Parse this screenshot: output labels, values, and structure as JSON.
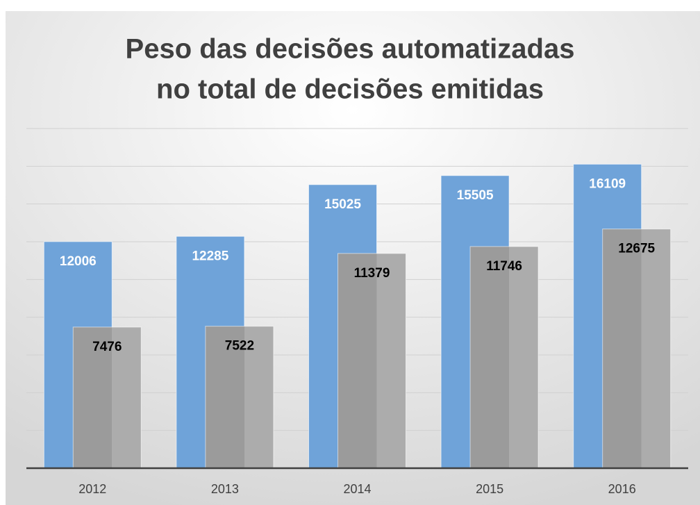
{
  "chart_data": {
    "type": "bar",
    "title": [
      "Peso das decisões automatizadas",
      "no total de decisões emitidas"
    ],
    "categories": [
      "2012",
      "2013",
      "2014",
      "2015",
      "2016"
    ],
    "series": [
      {
        "color": "#6fa3d9",
        "values": [
          12006,
          12285,
          15025,
          15505,
          16109
        ]
      },
      {
        "color": "#a8a8a8",
        "values": [
          7476,
          7522,
          11379,
          11746,
          12675
        ]
      }
    ],
    "ylim": [
      0,
      18000
    ],
    "yticks": [
      0,
      2000,
      4000,
      6000,
      8000,
      10000,
      12000,
      14000,
      16000,
      18000
    ],
    "grid": true
  }
}
